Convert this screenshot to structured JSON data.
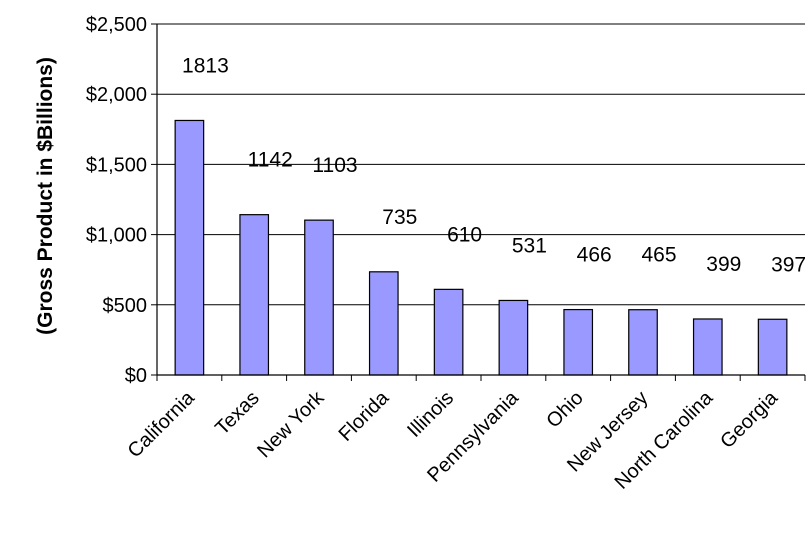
{
  "chart_data": {
    "type": "bar",
    "title": "",
    "xlabel": "",
    "ylabel": "(Gross Product in $Billions)",
    "ylim": [
      0,
      2500
    ],
    "yticks": [
      0,
      500,
      1000,
      1500,
      2000,
      2500
    ],
    "ytick_labels": [
      "$0",
      "$500",
      "$1,000",
      "$1,500",
      "$2,000",
      "$2,500"
    ],
    "grid": true,
    "legend": "none",
    "bar_color": "#9999FF",
    "categories": [
      "California",
      "Texas",
      "New York",
      "Florida",
      "Illinois",
      "Pennsylvania",
      "Ohio",
      "New Jersey",
      "North Carolina",
      "Georgia"
    ],
    "values": [
      1813,
      1142,
      1103,
      735,
      610,
      531,
      466,
      465,
      399,
      397
    ],
    "data_labels": [
      "1813",
      "1142",
      "1103",
      "735",
      "610",
      "531",
      "466",
      "465",
      "399",
      "397"
    ]
  }
}
